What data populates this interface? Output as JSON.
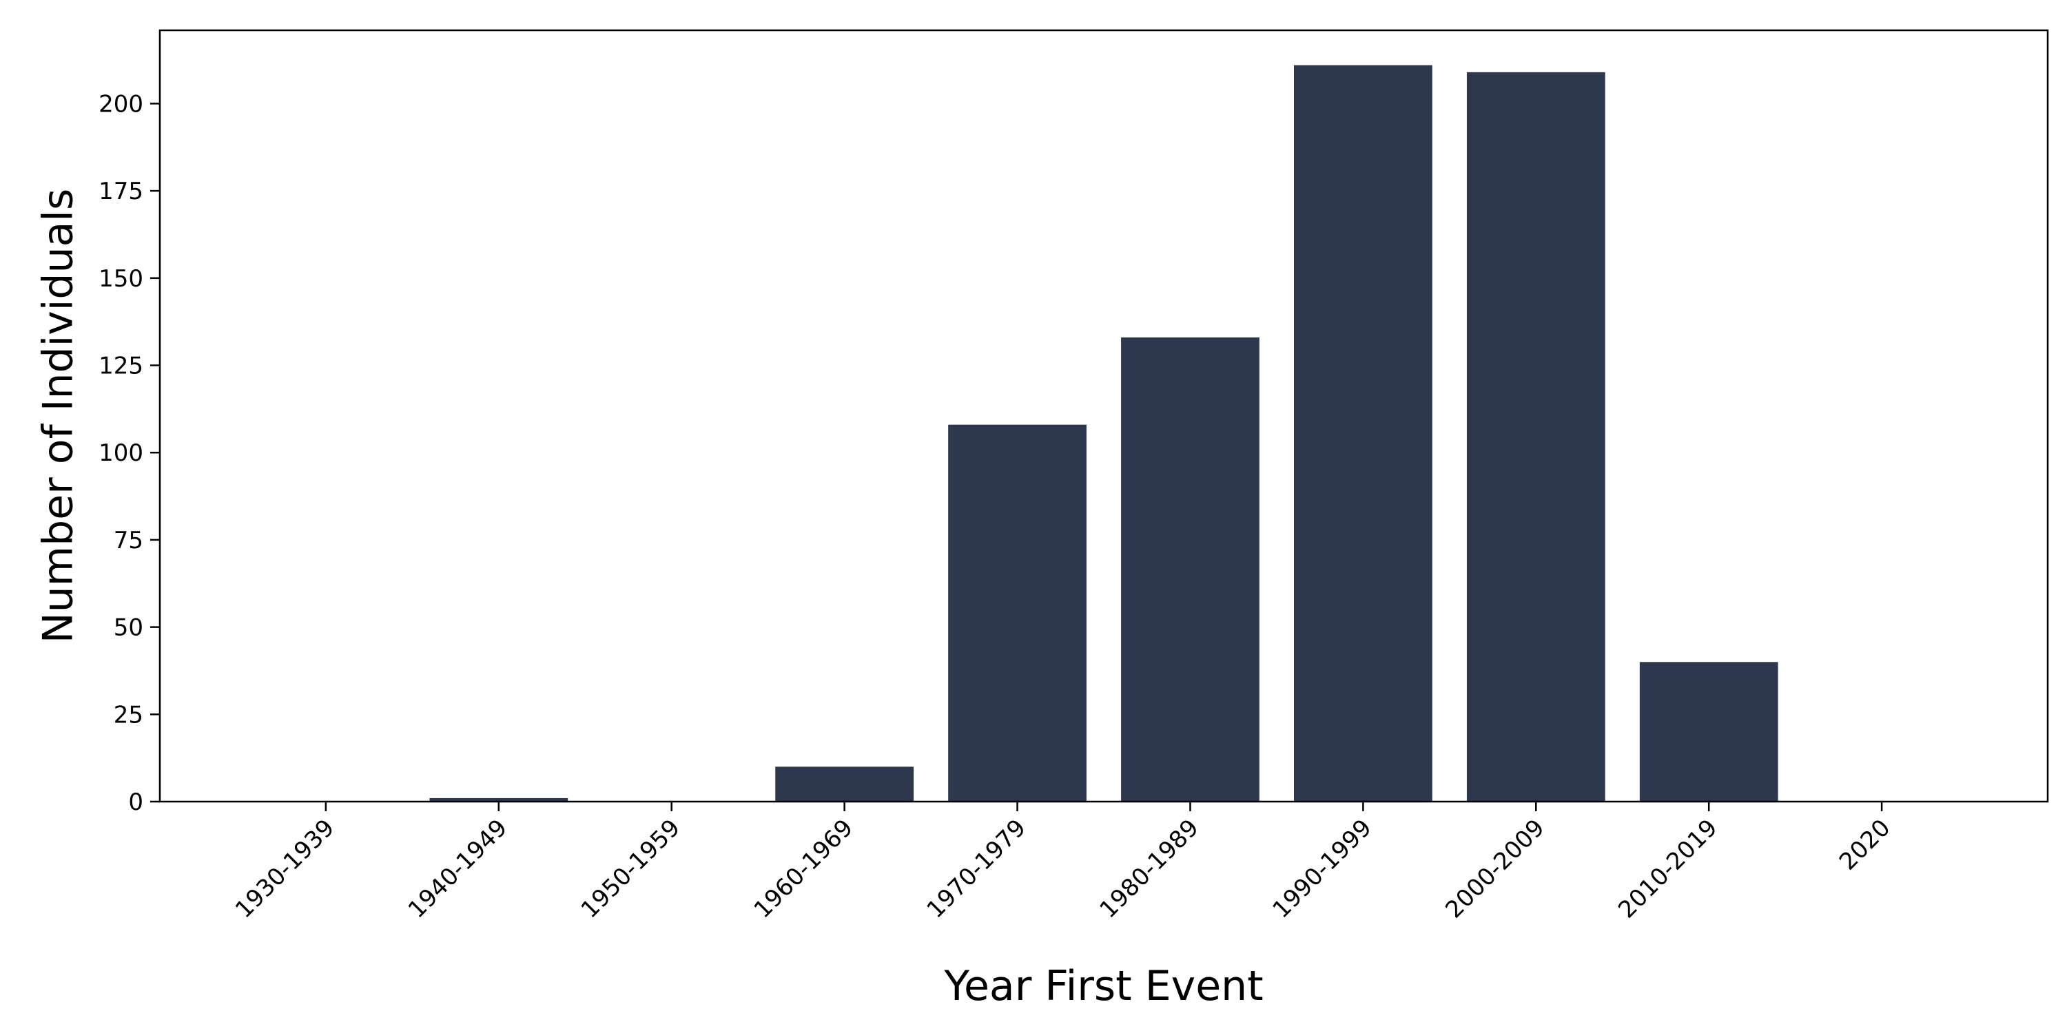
{
  "chart_data": {
    "type": "bar",
    "title": "",
    "xlabel": "Year First Event",
    "ylabel": "Number of Individuals",
    "categories": [
      "1930-1939",
      "1940-1949",
      "1950-1959",
      "1960-1969",
      "1970-1979",
      "1980-1989",
      "1990-1999",
      "2000-2009",
      "2010-2019",
      "2020"
    ],
    "values": [
      0,
      1,
      0,
      10,
      108,
      133,
      211,
      209,
      40,
      0
    ],
    "ylim": [
      0,
      221
    ],
    "yticks": [
      0,
      25,
      50,
      75,
      100,
      125,
      150,
      175,
      200
    ],
    "grid": false,
    "legend": "none",
    "bar_color": "#2d384f"
  }
}
